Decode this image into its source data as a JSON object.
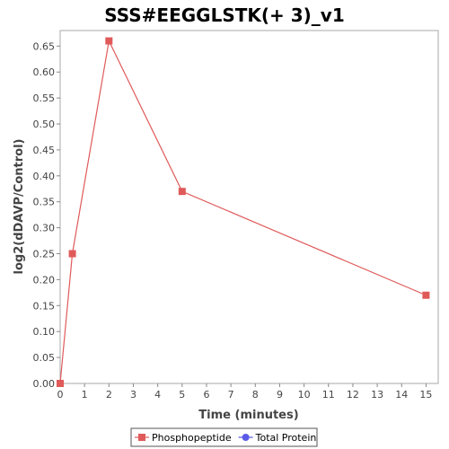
{
  "chart_data": {
    "type": "line",
    "title": "SSS#EEGGLSTK(+ 3)_v1",
    "xlabel": "Time (minutes)",
    "ylabel": "log2(dDAVP/Control)",
    "xlim": [
      0,
      15.5
    ],
    "ylim": [
      0,
      0.68
    ],
    "xticks": [
      0,
      1,
      2,
      3,
      4,
      5,
      6,
      7,
      8,
      9,
      10,
      11,
      12,
      13,
      14,
      15
    ],
    "yticks": [
      "0.00",
      "0.05",
      "0.10",
      "0.15",
      "0.20",
      "0.25",
      "0.30",
      "0.35",
      "0.40",
      "0.45",
      "0.50",
      "0.55",
      "0.60",
      "0.65"
    ],
    "grid": false,
    "legend_position": "bottom",
    "series": [
      {
        "name": "Phosphopeptide",
        "color": "#e05a5a",
        "marker": "square",
        "x": [
          0,
          0.5,
          2,
          5,
          15
        ],
        "y": [
          0.0,
          0.25,
          0.66,
          0.37,
          0.17
        ]
      },
      {
        "name": "Total Protein",
        "color": "#5a5ae6",
        "marker": "circle",
        "x": [],
        "y": []
      }
    ]
  }
}
